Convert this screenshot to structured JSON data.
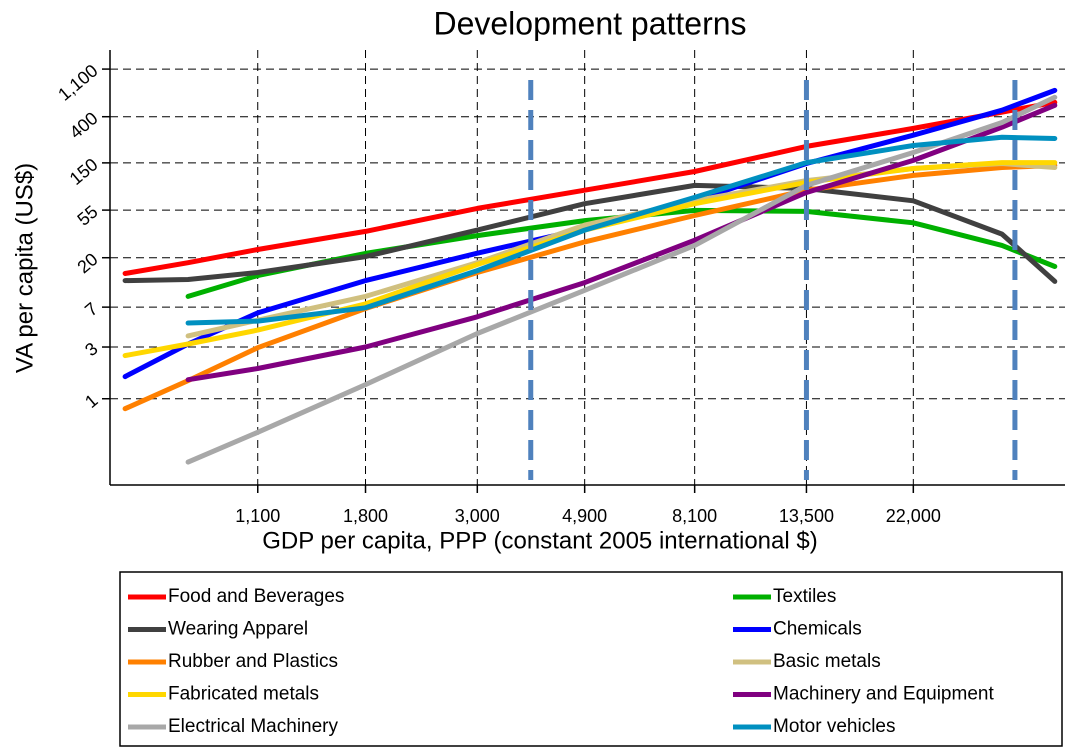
{
  "chart_data": {
    "type": "line",
    "title": "Development patterns",
    "x_label": "GDP per capita, PPP (constant 2005 international $)",
    "y_label": "VA per capita (US$)",
    "xscale": "log",
    "yscale": "log",
    "grid": true,
    "legend": "bottom",
    "xlim": [
      560,
      44000
    ],
    "ylim": [
      0.16,
      1650
    ],
    "xticks": [
      {
        "value": 1100,
        "label": "1,100"
      },
      {
        "value": 1800,
        "label": "1,800"
      },
      {
        "value": 3000,
        "label": "3,000"
      },
      {
        "value": 4900,
        "label": "4,900"
      },
      {
        "value": 8100,
        "label": "8,100"
      },
      {
        "value": 13500,
        "label": "13,500"
      },
      {
        "value": 22000,
        "label": "22,000"
      }
    ],
    "yticks": [
      1,
      3,
      7,
      20,
      55,
      150,
      400,
      {
        "value": 1100,
        "label": "1,100"
      }
    ],
    "vlines": [
      3830,
      13500,
      35000
    ],
    "vline_color": "#4f81bd",
    "x": [
      600,
      800,
      1100,
      1800,
      3000,
      4900,
      8100,
      13500,
      22000,
      33000,
      42000
    ],
    "series": [
      {
        "name": "Food and Beverages",
        "color": "#ff0000",
        "values": [
          14.3,
          18,
          23.8,
          35,
          57,
          84,
          125,
          213,
          312,
          440,
          543
        ]
      },
      {
        "name": "Textiles",
        "color": "#00b000",
        "values": [
          null,
          8.8,
          13.7,
          21.9,
          32,
          44,
          54.6,
          53.5,
          42,
          26,
          16.6
        ]
      },
      {
        "name": "Wearing Apparel",
        "color": "#404040",
        "values": [
          12.3,
          12.6,
          14.6,
          20.5,
          36,
          63,
          93,
          87,
          67,
          33,
          12.1
        ]
      },
      {
        "name": "Chemicals",
        "color": "#0000ff",
        "values": [
          1.6,
          3.2,
          6.2,
          12.3,
          22,
          37,
          67,
          148,
          270,
          459,
          700
        ]
      },
      {
        "name": "Rubber and Plastics",
        "color": "#ff8000",
        "values": [
          0.81,
          1.47,
          2.96,
          6.8,
          14.6,
          28,
          49,
          84,
          115,
          136,
          142
        ]
      },
      {
        "name": "Basic metals",
        "color": "#d0c080",
        "values": [
          null,
          3.8,
          5.3,
          8.8,
          18,
          40,
          67,
          103,
          133,
          148,
          136
        ]
      },
      {
        "name": "Fabricated metals",
        "color": "#ffd700",
        "values": [
          2.5,
          3.2,
          4.3,
          7.5,
          17.3,
          36,
          63,
          99,
          133,
          151,
          151
        ]
      },
      {
        "name": "Machinery and Equipment",
        "color": "#800080",
        "values": [
          null,
          1.5,
          1.9,
          3.0,
          5.7,
          11.8,
          29,
          80,
          158,
          320,
          510
        ]
      },
      {
        "name": "Electrical Machinery",
        "color": "#a8a8a8",
        "values": [
          null,
          0.26,
          0.49,
          1.35,
          4.0,
          10,
          26,
          93,
          187,
          354,
          604
        ]
      },
      {
        "name": "Motor vehicles",
        "color": "#0090c0",
        "values": [
          null,
          5.0,
          5.2,
          6.9,
          15.2,
          36,
          72,
          151,
          217,
          258,
          252
        ]
      }
    ]
  }
}
